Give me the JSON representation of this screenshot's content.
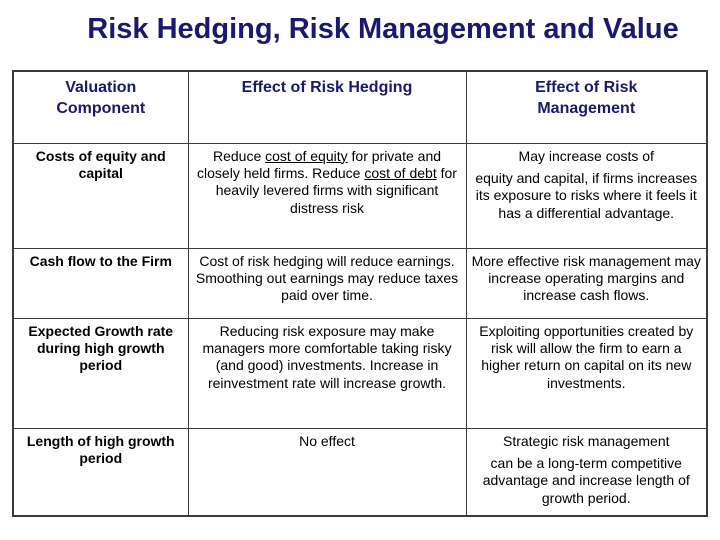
{
  "slide": {
    "title": "Risk Hedging, Risk Management and Value"
  },
  "colors": {
    "title_text": "#191970",
    "header_text": "#191970",
    "body_text": "#000000",
    "table_border": "#3a3a3a",
    "background": "#ffffff"
  },
  "table": {
    "headers": [
      "Valuation\nComponent",
      "Effect of Risk Hedging",
      "Effect of Risk\nManagement"
    ],
    "rows": [
      {
        "component": "Costs of equity and capital",
        "hedging_parts": [
          "Reduce ",
          "cost of equity",
          " for private and closely held firms. Reduce ",
          "cost of debt",
          " for heavily levered firms with significant distress risk"
        ],
        "management_paragraphs": [
          "May increase costs of",
          "equity and capital, if firms increases its exposure to risks where it feels it has a differential advantage."
        ]
      },
      {
        "component": "Cash flow to the Firm",
        "hedging": "Cost of risk hedging will reduce earnings. Smoothing out earnings may reduce taxes paid over time.",
        "management": "More effective risk management may increase operating margins and increase cash flows."
      },
      {
        "component": "Expected Growth rate during high growth period",
        "hedging": "Reducing risk exposure may make managers more comfortable taking risky  (and good) investments. Increase in reinvestment rate will increase growth.",
        "management": "Exploiting opportunities created by risk will allow the firm to earn a higher return on capital on its new investments."
      },
      {
        "component": "Length of high growth period",
        "hedging": "No effect",
        "management_paragraphs": [
          "Strategic risk management",
          "can be a long-term competitive advantage and increase length of growth period."
        ]
      }
    ]
  }
}
